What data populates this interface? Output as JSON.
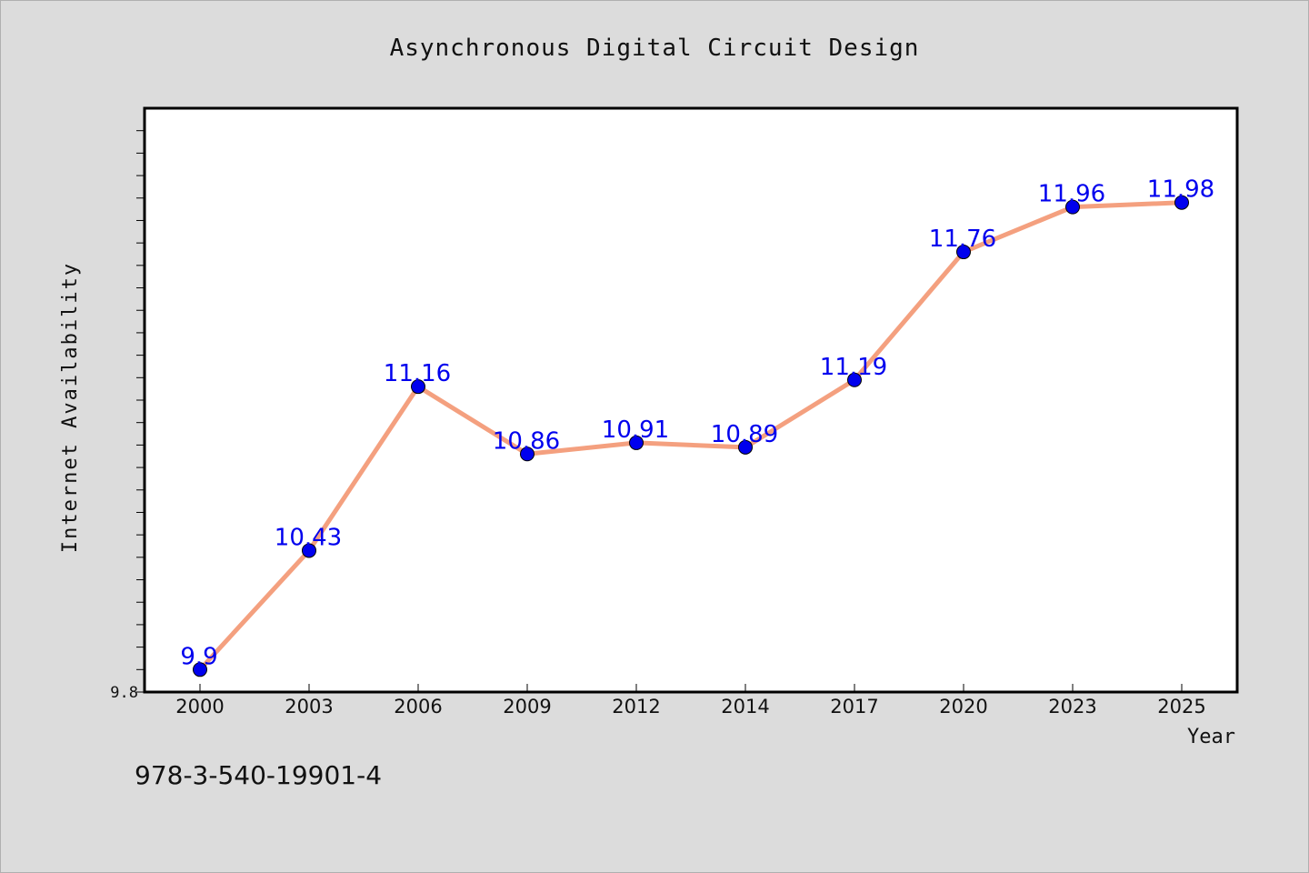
{
  "chart_data": {
    "type": "line",
    "title": "Asynchronous Digital Circuit Design",
    "xlabel": "Year",
    "ylabel": "Internet Availability",
    "categories": [
      "2000",
      "2003",
      "2006",
      "2009",
      "2012",
      "2014",
      "2017",
      "2020",
      "2023",
      "2025"
    ],
    "series": [
      {
        "values": [
          9.9,
          10.43,
          11.16,
          10.86,
          10.91,
          10.89,
          11.19,
          11.76,
          11.96,
          11.98
        ],
        "labels": [
          "9.9",
          "10.43",
          "11.16",
          "10.86",
          "10.91",
          "10.89",
          "11.19",
          "11.76",
          "11.96",
          "11.98"
        ],
        "line_color": "#f4a07f",
        "marker_color": "#0000ee"
      }
    ],
    "y_tick_labels": [
      "9.8"
    ],
    "ylim": [
      9.8,
      12.4
    ],
    "grid": false,
    "legend": "none"
  },
  "annotation": "978-3-540-19901-4"
}
